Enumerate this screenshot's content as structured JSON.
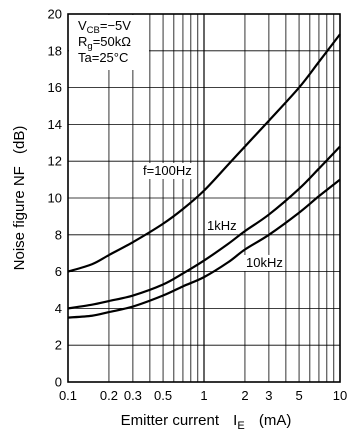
{
  "chart_data": {
    "type": "line",
    "xlabel": "Emitter current",
    "xlabel_symbol": "I",
    "xlabel_sub": "E",
    "xlabel_unit": "(mA)",
    "ylabel": "Noise figure  NF",
    "ylabel_unit": "(dB)",
    "x_scale": "log",
    "xlim": [
      0.1,
      10
    ],
    "ylim": [
      0,
      20
    ],
    "grid": true,
    "x_tick_labels": [
      {
        "value": 0.1,
        "label": "0.1"
      },
      {
        "value": 0.2,
        "label": "0.2"
      },
      {
        "value": 0.3,
        "label": "0.3"
      },
      {
        "value": 0.5,
        "label": "0.5"
      },
      {
        "value": 1,
        "label": "1"
      },
      {
        "value": 2,
        "label": "2"
      },
      {
        "value": 3,
        "label": "3"
      },
      {
        "value": 5,
        "label": "5"
      },
      {
        "value": 10,
        "label": "10"
      }
    ],
    "y_ticks": [
      0,
      2,
      4,
      6,
      8,
      10,
      12,
      14,
      16,
      18,
      20
    ],
    "annotations": [
      {
        "main": "V",
        "sub": "CB",
        "rest": "=−5V"
      },
      {
        "main": "R",
        "sub": "g",
        "rest": "=50kΩ"
      },
      {
        "main": "Ta=25°C",
        "sub": "",
        "rest": ""
      }
    ],
    "series": [
      {
        "name": "f=100Hz",
        "x": [
          0.1,
          0.15,
          0.2,
          0.3,
          0.5,
          0.7,
          1,
          1.5,
          2,
          3,
          5,
          7,
          10
        ],
        "y": [
          6.0,
          6.4,
          6.9,
          7.6,
          8.6,
          9.4,
          10.4,
          11.8,
          12.8,
          14.2,
          16.0,
          17.4,
          18.9
        ]
      },
      {
        "name": "1kHz",
        "x": [
          0.1,
          0.15,
          0.2,
          0.3,
          0.5,
          0.7,
          1,
          1.5,
          2,
          3,
          5,
          7,
          10
        ],
        "y": [
          4.0,
          4.2,
          4.4,
          4.7,
          5.3,
          5.9,
          6.6,
          7.5,
          8.2,
          9.1,
          10.5,
          11.6,
          12.8
        ]
      },
      {
        "name": "10kHz",
        "x": [
          0.1,
          0.15,
          0.2,
          0.3,
          0.5,
          0.7,
          1,
          1.5,
          2,
          3,
          5,
          7,
          10
        ],
        "y": [
          3.5,
          3.6,
          3.8,
          4.1,
          4.7,
          5.2,
          5.7,
          6.5,
          7.2,
          8.0,
          9.2,
          10.1,
          11.0
        ]
      }
    ]
  }
}
